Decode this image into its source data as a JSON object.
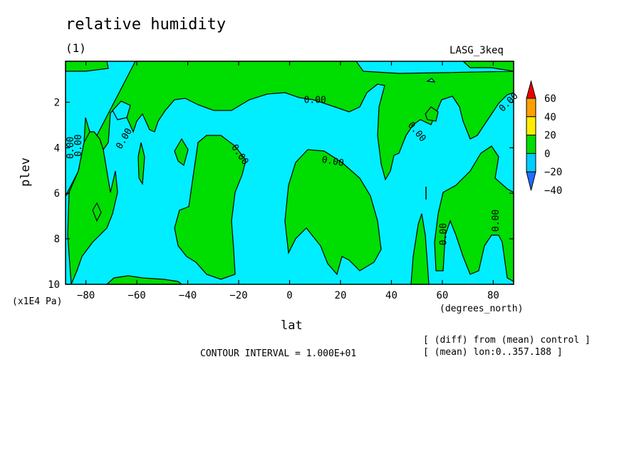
{
  "chart_data": {
    "type": "contour",
    "title": "relative humidity",
    "subtitle": "(1)",
    "run_label": "LASG_3keq",
    "xlabel": "lat",
    "x_unit": "(degrees_north)",
    "ylabel": "plev",
    "y_unit": "(x1E4 Pa)",
    "xlim": [
      -88,
      88
    ],
    "ylim": [
      10,
      0.2
    ],
    "y_inverted": true,
    "x_ticks": [
      -80,
      -60,
      -40,
      -20,
      0,
      20,
      40,
      60,
      80
    ],
    "x_tick_labels": [
      "-80",
      "-60",
      "-40",
      "-20",
      "0",
      "20",
      "40",
      "60",
      "80"
    ],
    "y_ticks": [
      2,
      4,
      6,
      8,
      10
    ],
    "y_tick_labels": [
      "2",
      "4",
      "6",
      "8",
      "10"
    ],
    "contour_interval_text": "CONTOUR INTERVAL = 1.000E+01",
    "contour_label": "0.00",
    "notes": [
      "[ (diff) from (mean) control ]",
      "[ (mean) lon:0..357.188 ]"
    ],
    "colorbar": {
      "levels": [
        -40,
        -20,
        0,
        20,
        40,
        60
      ],
      "level_labels": [
        "60",
        "40",
        "20",
        "0",
        "−20",
        "−40"
      ],
      "colors": [
        "#1f6fff",
        "#00ccff",
        "#00dd00",
        "#ffee00",
        "#ffa000",
        "#ee0000"
      ]
    },
    "background_color": "#00eeff",
    "positive_color": "#00dd00",
    "regions_positive": [
      {
        "name": "top band",
        "lat": [
          -88,
          88
        ],
        "plev": [
          0.2,
          3.0
        ]
      },
      {
        "name": "south polar column",
        "lat": [
          -84,
          -72
        ],
        "plev": [
          2,
          10
        ]
      },
      {
        "name": "southern midlatitude tongue",
        "lat": [
          -45,
          -20
        ],
        "plev": [
          3.5,
          10
        ]
      },
      {
        "name": "tropical tongue",
        "lat": [
          0,
          35
        ],
        "plev": [
          4.2,
          9.5
        ]
      },
      {
        "name": "northern column",
        "lat": [
          50,
          55
        ],
        "plev": [
          7,
          10
        ]
      },
      {
        "name": "northern high-latitude columns",
        "lat": [
          58,
          88
        ],
        "plev": [
          3.5,
          10
        ]
      }
    ]
  }
}
